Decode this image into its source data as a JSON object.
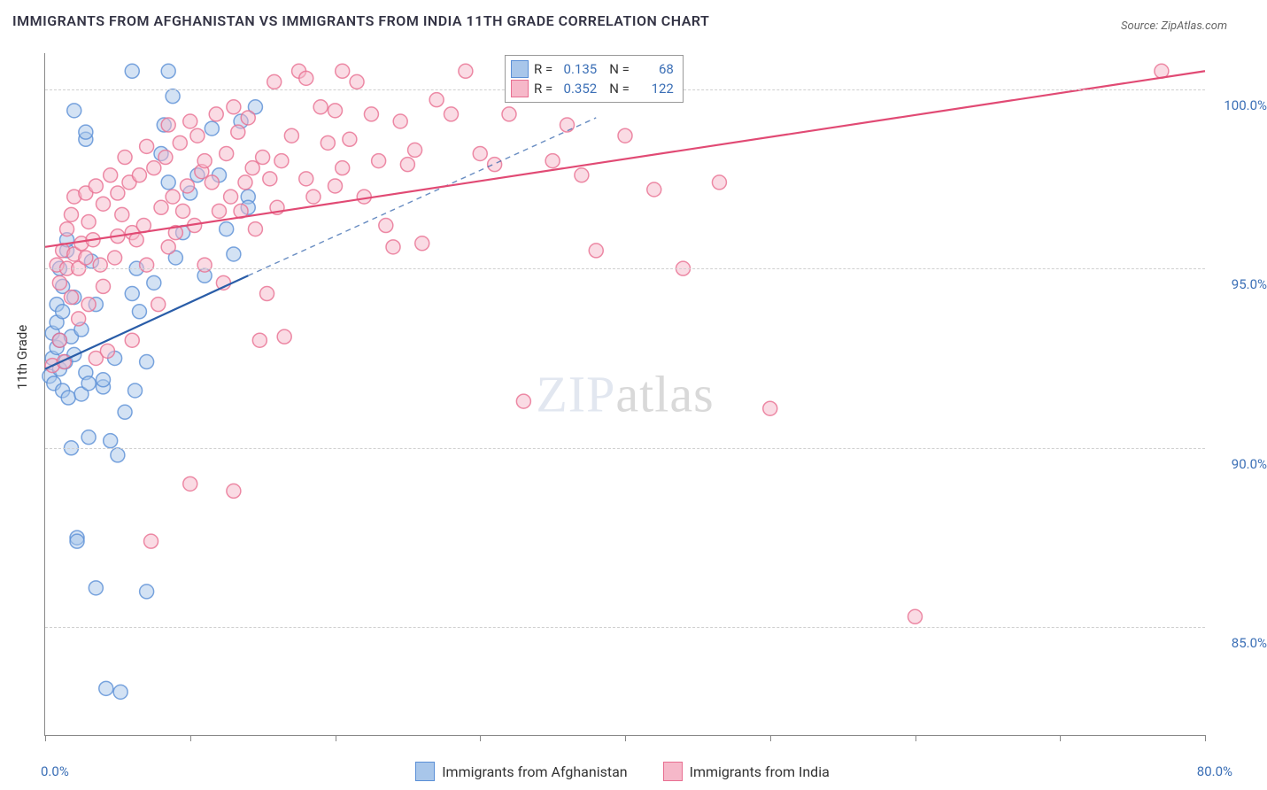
{
  "title": "IMMIGRANTS FROM AFGHANISTAN VS IMMIGRANTS FROM INDIA 11TH GRADE CORRELATION CHART",
  "source_label": "Source:",
  "source_value": "ZipAtlas.com",
  "y_axis_label": "11th Grade",
  "watermark_a": "ZIP",
  "watermark_b": "atlas",
  "chart": {
    "type": "scatter",
    "xlim": [
      0,
      80
    ],
    "ylim": [
      82,
      101
    ],
    "x_ticks": [
      0,
      10,
      20,
      30,
      40,
      50,
      60,
      70,
      80
    ],
    "x_tick_labels": {
      "0": "0.0%",
      "80": "80.0%"
    },
    "y_grid": [
      85,
      90,
      95,
      100
    ],
    "y_tick_labels": {
      "85": "85.0%",
      "90": "90.0%",
      "95": "95.0%",
      "100": "100.0%"
    },
    "background_color": "#ffffff",
    "grid_color": "#d0d0d0",
    "axis_color": "#888888",
    "tick_label_color": "#3b6fb6",
    "point_radius": 8,
    "point_stroke_width": 1.5,
    "point_fill_opacity": 0.25,
    "series": [
      {
        "key": "afghanistan",
        "label": "Immigrants from Afghanistan",
        "color_stroke": "#5a8fd6",
        "color_fill": "#a8c6ea",
        "R": "0.135",
        "N": "68",
        "trend_solid": {
          "x1": 0,
          "y1": 92.2,
          "x2": 14,
          "y2": 94.8
        },
        "trend_dashed": {
          "x1": 14,
          "y1": 94.8,
          "x2": 38,
          "y2": 99.2
        },
        "line_color": "#2a5da8",
        "points": [
          [
            0.3,
            92.0
          ],
          [
            0.5,
            92.5
          ],
          [
            0.5,
            93.2
          ],
          [
            0.6,
            91.8
          ],
          [
            0.8,
            93.5
          ],
          [
            0.8,
            92.8
          ],
          [
            0.8,
            94.0
          ],
          [
            1.0,
            95.0
          ],
          [
            1.0,
            93.0
          ],
          [
            1.0,
            92.2
          ],
          [
            1.2,
            91.6
          ],
          [
            1.2,
            93.8
          ],
          [
            1.2,
            94.5
          ],
          [
            1.4,
            92.4
          ],
          [
            1.5,
            95.5
          ],
          [
            1.5,
            95.8
          ],
          [
            1.6,
            91.4
          ],
          [
            1.8,
            93.1
          ],
          [
            1.8,
            90.0
          ],
          [
            2.0,
            94.2
          ],
          [
            2.0,
            92.6
          ],
          [
            2.0,
            99.4
          ],
          [
            2.2,
            87.5
          ],
          [
            2.2,
            87.4
          ],
          [
            2.5,
            91.5
          ],
          [
            2.5,
            93.3
          ],
          [
            2.8,
            92.1
          ],
          [
            2.8,
            98.6
          ],
          [
            2.8,
            98.8
          ],
          [
            3.0,
            91.8
          ],
          [
            3.0,
            90.3
          ],
          [
            3.2,
            95.2
          ],
          [
            3.5,
            94.0
          ],
          [
            3.5,
            86.1
          ],
          [
            4.0,
            91.7
          ],
          [
            4.0,
            91.9
          ],
          [
            4.2,
            83.3
          ],
          [
            4.5,
            90.2
          ],
          [
            4.8,
            92.5
          ],
          [
            5.0,
            89.8
          ],
          [
            5.2,
            83.2
          ],
          [
            5.5,
            91.0
          ],
          [
            6.0,
            94.3
          ],
          [
            6.0,
            100.5
          ],
          [
            6.3,
            95.0
          ],
          [
            6.5,
            93.8
          ],
          [
            7.0,
            92.4
          ],
          [
            7.0,
            86.0
          ],
          [
            7.5,
            94.6
          ],
          [
            8.0,
            98.2
          ],
          [
            8.2,
            99.0
          ],
          [
            8.5,
            97.4
          ],
          [
            8.8,
            99.8
          ],
          [
            9.0,
            95.3
          ],
          [
            9.5,
            96.0
          ],
          [
            10.0,
            97.1
          ],
          [
            10.5,
            97.6
          ],
          [
            11.0,
            94.8
          ],
          [
            11.5,
            98.9
          ],
          [
            12.0,
            97.6
          ],
          [
            12.5,
            96.1
          ],
          [
            13.0,
            95.4
          ],
          [
            13.5,
            99.1
          ],
          [
            14.0,
            97.0
          ],
          [
            14.5,
            99.5
          ],
          [
            14.0,
            96.7
          ],
          [
            8.5,
            100.5
          ],
          [
            6.2,
            91.6
          ]
        ]
      },
      {
        "key": "india",
        "label": "Immigrants from India",
        "color_stroke": "#e86f91",
        "color_fill": "#f6b8c9",
        "R": "0.352",
        "N": "122",
        "trend_solid": {
          "x1": 0,
          "y1": 95.6,
          "x2": 80,
          "y2": 100.5
        },
        "trend_dashed": null,
        "line_color": "#e14a74",
        "points": [
          [
            0.5,
            92.3
          ],
          [
            0.8,
            95.1
          ],
          [
            1.0,
            94.6
          ],
          [
            1.0,
            93.0
          ],
          [
            1.2,
            95.5
          ],
          [
            1.3,
            92.4
          ],
          [
            1.5,
            96.1
          ],
          [
            1.5,
            95.0
          ],
          [
            1.8,
            96.5
          ],
          [
            1.8,
            94.2
          ],
          [
            2.0,
            95.4
          ],
          [
            2.0,
            97.0
          ],
          [
            2.3,
            95.0
          ],
          [
            2.3,
            93.6
          ],
          [
            2.5,
            95.7
          ],
          [
            2.8,
            97.1
          ],
          [
            2.8,
            95.3
          ],
          [
            3.0,
            94.0
          ],
          [
            3.0,
            96.3
          ],
          [
            3.3,
            95.8
          ],
          [
            3.5,
            92.5
          ],
          [
            3.5,
            97.3
          ],
          [
            3.8,
            95.1
          ],
          [
            4.0,
            94.5
          ],
          [
            4.0,
            96.8
          ],
          [
            4.3,
            92.7
          ],
          [
            4.5,
            97.6
          ],
          [
            4.8,
            95.3
          ],
          [
            5.0,
            97.1
          ],
          [
            5.0,
            95.9
          ],
          [
            5.3,
            96.5
          ],
          [
            5.5,
            98.1
          ],
          [
            5.8,
            97.4
          ],
          [
            6.0,
            96.0
          ],
          [
            6.0,
            93.0
          ],
          [
            6.3,
            95.8
          ],
          [
            6.5,
            97.6
          ],
          [
            6.8,
            96.2
          ],
          [
            7.0,
            98.4
          ],
          [
            7.0,
            95.1
          ],
          [
            7.3,
            87.4
          ],
          [
            7.5,
            97.8
          ],
          [
            7.8,
            94.0
          ],
          [
            8.0,
            96.7
          ],
          [
            8.3,
            98.1
          ],
          [
            8.5,
            99.0
          ],
          [
            8.5,
            95.6
          ],
          [
            8.8,
            97.0
          ],
          [
            9.0,
            96.0
          ],
          [
            9.3,
            98.5
          ],
          [
            9.5,
            96.6
          ],
          [
            9.8,
            97.3
          ],
          [
            10.0,
            99.1
          ],
          [
            10.0,
            89.0
          ],
          [
            10.3,
            96.2
          ],
          [
            10.5,
            98.7
          ],
          [
            10.8,
            97.7
          ],
          [
            11.0,
            95.1
          ],
          [
            11.0,
            98.0
          ],
          [
            11.5,
            97.4
          ],
          [
            11.8,
            99.3
          ],
          [
            12.0,
            96.6
          ],
          [
            12.3,
            94.6
          ],
          [
            12.5,
            98.2
          ],
          [
            12.8,
            97.0
          ],
          [
            13.0,
            99.5
          ],
          [
            13.0,
            88.8
          ],
          [
            13.3,
            98.8
          ],
          [
            13.5,
            96.6
          ],
          [
            13.8,
            97.4
          ],
          [
            14.0,
            99.2
          ],
          [
            14.3,
            97.8
          ],
          [
            14.5,
            96.1
          ],
          [
            14.8,
            93.0
          ],
          [
            15.0,
            98.1
          ],
          [
            15.3,
            94.3
          ],
          [
            15.5,
            97.5
          ],
          [
            15.8,
            100.2
          ],
          [
            16.0,
            96.7
          ],
          [
            16.3,
            98.0
          ],
          [
            16.5,
            93.1
          ],
          [
            17.0,
            98.7
          ],
          [
            17.5,
            100.5
          ],
          [
            18.0,
            97.5
          ],
          [
            18.0,
            100.3
          ],
          [
            18.5,
            97.0
          ],
          [
            19.0,
            99.5
          ],
          [
            19.5,
            98.5
          ],
          [
            20.0,
            99.4
          ],
          [
            20.0,
            97.3
          ],
          [
            20.5,
            100.5
          ],
          [
            20.5,
            97.8
          ],
          [
            21.0,
            98.6
          ],
          [
            21.5,
            100.2
          ],
          [
            22.0,
            97.0
          ],
          [
            22.5,
            99.3
          ],
          [
            23.0,
            98.0
          ],
          [
            23.5,
            96.2
          ],
          [
            24.0,
            95.6
          ],
          [
            24.5,
            99.1
          ],
          [
            25.0,
            97.9
          ],
          [
            25.5,
            98.3
          ],
          [
            26.0,
            95.7
          ],
          [
            27.0,
            99.7
          ],
          [
            28.0,
            99.3
          ],
          [
            29.0,
            100.5
          ],
          [
            30.0,
            98.2
          ],
          [
            31.0,
            97.9
          ],
          [
            32.0,
            99.3
          ],
          [
            33.0,
            91.3
          ],
          [
            35.0,
            98.0
          ],
          [
            36.0,
            99.0
          ],
          [
            37.0,
            97.6
          ],
          [
            38.0,
            95.5
          ],
          [
            40.0,
            98.7
          ],
          [
            42.0,
            97.2
          ],
          [
            44.0,
            95.0
          ],
          [
            46.5,
            97.4
          ],
          [
            50.0,
            91.1
          ],
          [
            60.0,
            85.3
          ],
          [
            77.0,
            100.5
          ]
        ]
      }
    ]
  },
  "legend_box": {
    "r_label": "R =",
    "n_label": "N ="
  },
  "bottom_legend": {
    "items": [
      "afghanistan",
      "india"
    ]
  }
}
